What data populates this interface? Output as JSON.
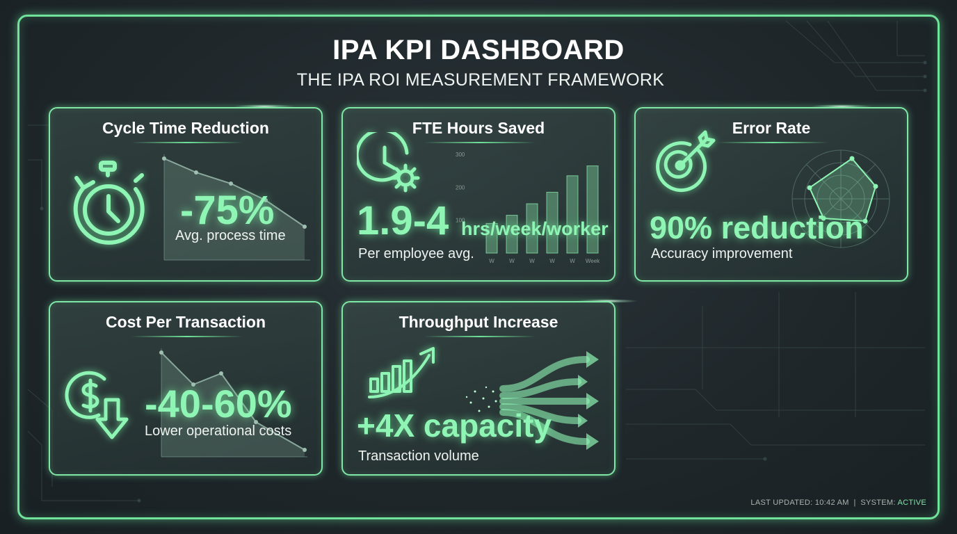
{
  "header": {
    "title": "IPA KPI DASHBOARD",
    "subtitle": "THE IPA ROI MEASUREMENT FRAMEWORK"
  },
  "cards": {
    "cycle": {
      "title": "Cycle Time Reduction",
      "icon": "stopwatch-icon",
      "value": "-75%",
      "caption": "Avg. process time"
    },
    "fte": {
      "title": "FTE Hours Saved",
      "icon": "clock-gear-icon",
      "value": "1.9-4",
      "unit": "hrs/week/worker",
      "caption": "Per employee avg."
    },
    "error": {
      "title": "Error Rate",
      "icon": "target-arrow-icon",
      "value": "90% reduction",
      "caption": "Accuracy improvement"
    },
    "cost": {
      "title": "Cost Per Transaction",
      "icon": "dollar-down-icon",
      "value": "-40-60%",
      "caption": "Lower operational costs"
    },
    "throughput": {
      "title": "Throughput Increase",
      "icon": "growth-arrow-icon",
      "value": "+4X capacity",
      "caption": "Transaction volume"
    }
  },
  "fte_chart": {
    "y_ticks": [
      "300",
      "200",
      "100"
    ],
    "x_ticks": [
      "W",
      "W",
      "W",
      "W",
      "W",
      "Week"
    ],
    "values": [
      90,
      115,
      150,
      185,
      235,
      265
    ]
  },
  "footer": {
    "last_updated_label": "LAST UPDATED: 10:42 AM",
    "separator": "|",
    "system_label": "SYSTEM:",
    "system_status": "ACTIVE"
  },
  "colors": {
    "accent": "#6fe39a",
    "glow_text": "#8ff5b4",
    "background": "#1f272b"
  }
}
